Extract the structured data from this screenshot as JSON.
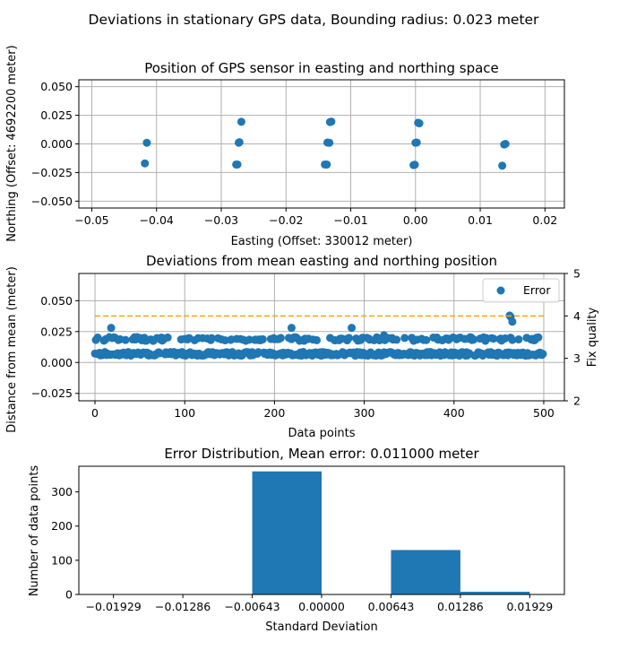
{
  "suptitle": "Deviations in stationary GPS data, Bounding radius: 0.023 meter",
  "colors": {
    "series": "#1f77b4",
    "threshold": "#ffa500",
    "grid": "#b0b0b0"
  },
  "chart_data": [
    {
      "type": "scatter",
      "title": "Position of GPS sensor in easting and northing space",
      "xlabel": "Easting (Offset: 330012 meter)",
      "ylabel": "Northing (Offset: 4692200 meter)",
      "xlim": [
        -0.052,
        0.023
      ],
      "ylim": [
        -0.056,
        0.056
      ],
      "xticks": [
        -0.05,
        -0.04,
        -0.03,
        -0.02,
        -0.01,
        0.0,
        0.01,
        0.02
      ],
      "xtick_labels": [
        "−0.05",
        "−0.04",
        "−0.03",
        "−0.02",
        "−0.01",
        "0.00",
        "0.01",
        "0.02"
      ],
      "yticks": [
        -0.05,
        -0.025,
        0.0,
        0.025,
        0.05
      ],
      "ytick_labels": [
        "−0.050",
        "−0.025",
        "0.000",
        "0.025",
        "0.050"
      ],
      "grid": true,
      "points": [
        [
          -0.0415,
          0.001
        ],
        [
          -0.0418,
          -0.017
        ],
        [
          -0.0273,
          0.001
        ],
        [
          -0.0272,
          0.0015
        ],
        [
          -0.0269,
          0.0193
        ],
        [
          -0.0277,
          -0.018
        ],
        [
          -0.0275,
          -0.018
        ],
        [
          -0.0136,
          0.0012
        ],
        [
          -0.0133,
          0.001
        ],
        [
          -0.0132,
          0.0191
        ],
        [
          -0.013,
          0.0195
        ],
        [
          -0.014,
          -0.018
        ],
        [
          -0.0137,
          -0.018
        ],
        [
          0.0,
          0.001
        ],
        [
          0.0002,
          0.0012
        ],
        [
          0.0004,
          0.0185
        ],
        [
          0.0006,
          0.018
        ],
        [
          -0.0003,
          -0.0185
        ],
        [
          -0.0001,
          -0.0182
        ],
        [
          0.0137,
          -0.0005
        ],
        [
          0.0139,
          0.0
        ],
        [
          0.0134,
          -0.019
        ]
      ]
    },
    {
      "type": "scatter",
      "title": "Deviations from mean easting and northing position",
      "xlabel": "Data points",
      "ylabel": "Distance from mean (meter)",
      "ylabel_right": "Fix quality",
      "xlim": [
        -18,
        523
      ],
      "ylim": [
        -0.031,
        0.072
      ],
      "ylim_right": [
        2,
        5
      ],
      "xticks": [
        0,
        100,
        200,
        300,
        400,
        500
      ],
      "yticks": [
        -0.025,
        0.0,
        0.025,
        0.05
      ],
      "ytick_labels": [
        "−0.025",
        "0.000",
        "0.025",
        "0.050"
      ],
      "yticks_right": [
        2,
        3,
        4,
        5
      ],
      "grid": true,
      "legend": {
        "label": "Error",
        "position": "top-right"
      },
      "threshold_right": {
        "value": 4,
        "from": 0,
        "to": 500
      },
      "series": {
        "n": 500,
        "low": 0.007,
        "high": 0.019,
        "outliers": [
          [
            18,
            0.028
          ],
          [
            219,
            0.028
          ],
          [
            286,
            0.028
          ],
          [
            322,
            0.022
          ],
          [
            463,
            0.037
          ],
          [
            465,
            0.033
          ],
          [
            462,
            0.038
          ]
        ]
      }
    },
    {
      "type": "bar",
      "title": "Error Distribution, Mean error: 0.011000 meter",
      "xlabel": "Standard Deviation",
      "ylabel": "Number of data points",
      "xlim": [
        -0.0225,
        0.0225
      ],
      "ylim": [
        0,
        375
      ],
      "xticks": [
        -0.01929,
        -0.01286,
        -0.00643,
        0.0,
        0.00643,
        0.01286,
        0.01929
      ],
      "xtick_labels": [
        "−0.01929",
        "−0.01286",
        "−0.00643",
        "0.00000",
        "0.00643",
        "0.01286",
        "0.01929"
      ],
      "yticks": [
        0,
        100,
        200,
        300
      ],
      "bins": [
        {
          "from": -0.00643,
          "to": 0.0,
          "value": 360
        },
        {
          "from": 0.00643,
          "to": 0.01286,
          "value": 130
        },
        {
          "from": 0.01286,
          "to": 0.01929,
          "value": 8
        }
      ]
    }
  ]
}
